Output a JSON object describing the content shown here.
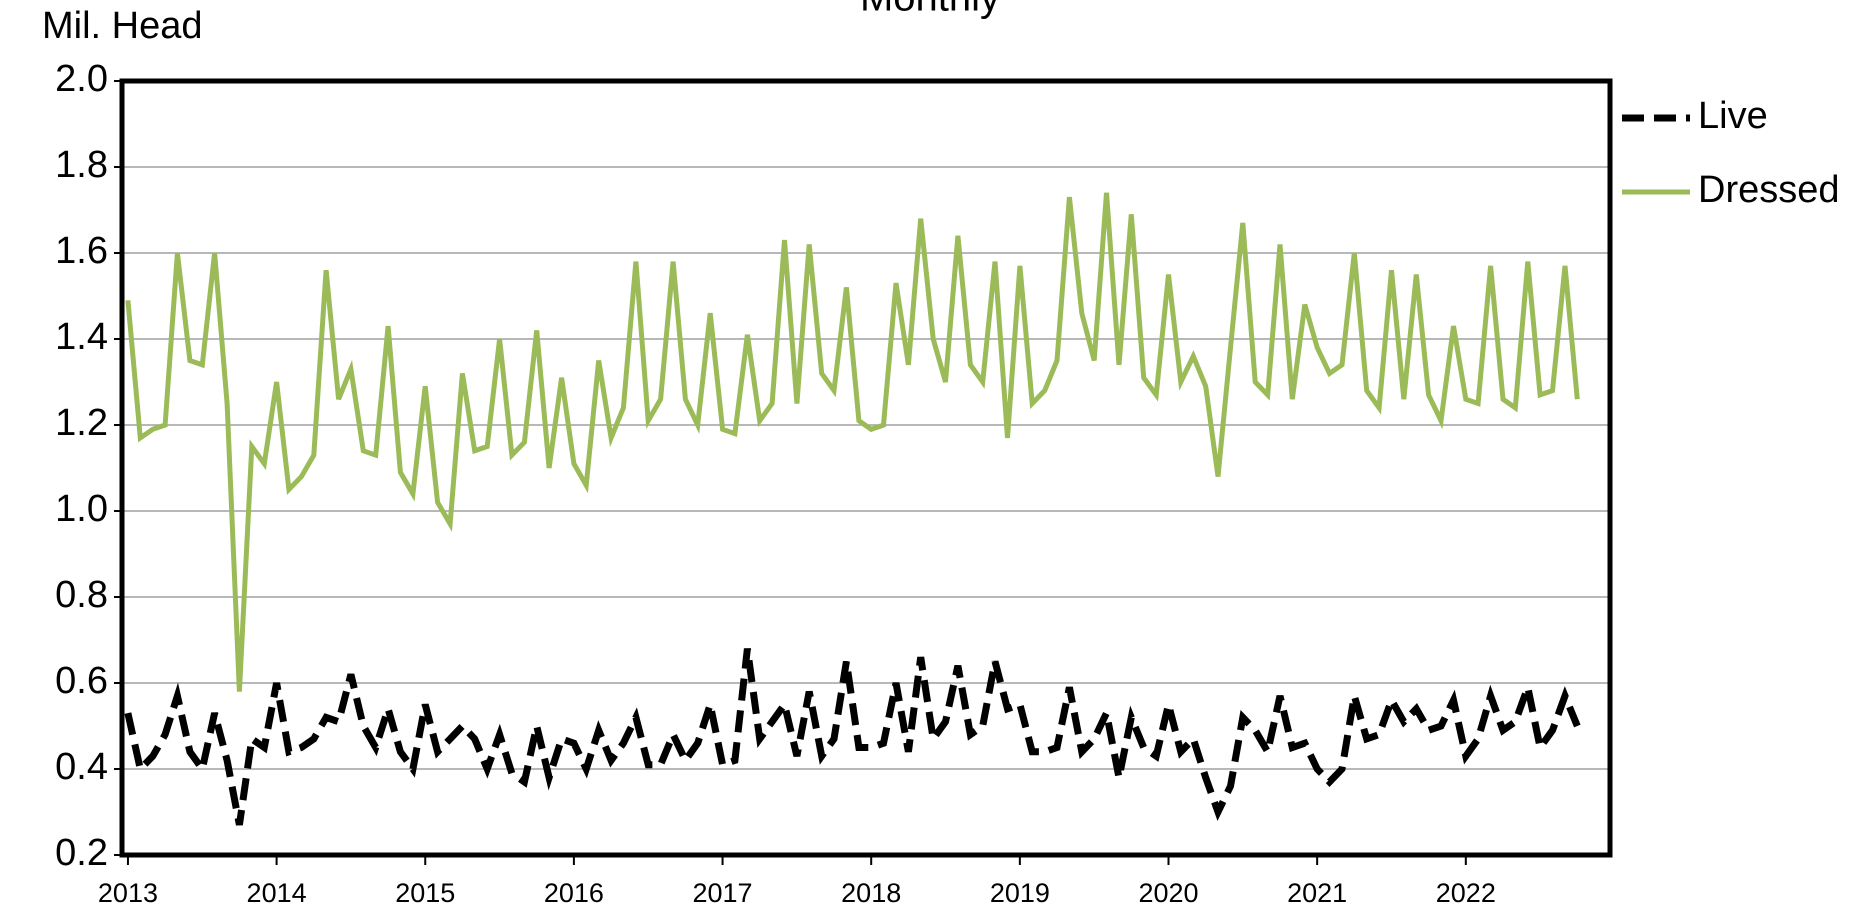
{
  "chart_data": {
    "type": "line",
    "title": "Monthly",
    "ylabel": "Mil. Head",
    "x": [
      2013,
      2013.083,
      2013.167,
      2013.25,
      2013.333,
      2013.417,
      2013.5,
      2013.583,
      2013.667,
      2013.75,
      2013.833,
      2013.917,
      2014,
      2014.083,
      2014.167,
      2014.25,
      2014.333,
      2014.417,
      2014.5,
      2014.583,
      2014.667,
      2014.75,
      2014.833,
      2014.917,
      2015,
      2015.083,
      2015.167,
      2015.25,
      2015.333,
      2015.417,
      2015.5,
      2015.583,
      2015.667,
      2015.75,
      2015.833,
      2015.917,
      2016,
      2016.083,
      2016.167,
      2016.25,
      2016.333,
      2016.417,
      2016.5,
      2016.583,
      2016.667,
      2016.75,
      2016.833,
      2016.917,
      2017,
      2017.083,
      2017.167,
      2017.25,
      2017.333,
      2017.417,
      2017.5,
      2017.583,
      2017.667,
      2017.75,
      2017.833,
      2017.917,
      2018,
      2018.083,
      2018.167,
      2018.25,
      2018.333,
      2018.417,
      2018.5,
      2018.583,
      2018.667,
      2018.75,
      2018.833,
      2018.917,
      2019,
      2019.083,
      2019.167,
      2019.25,
      2019.333,
      2019.417,
      2019.5,
      2019.583,
      2019.667,
      2019.75,
      2019.833,
      2019.917,
      2020,
      2020.083,
      2020.167,
      2020.25,
      2020.333,
      2020.417,
      2020.5,
      2020.583,
      2020.667,
      2020.75,
      2020.833,
      2020.917,
      2021,
      2021.083,
      2021.167,
      2021.25,
      2021.333,
      2021.417,
      2021.5,
      2021.583,
      2021.667,
      2021.75,
      2021.833,
      2021.917,
      2022,
      2022.083,
      2022.167,
      2022.25,
      2022.333,
      2022.417,
      2022.5,
      2022.583,
      2022.667,
      2022.75
    ],
    "series": [
      {
        "name": "Live",
        "color": "#000000",
        "dashed": true,
        "values": [
          0.53,
          0.4,
          0.43,
          0.48,
          0.57,
          0.44,
          0.4,
          0.53,
          0.42,
          0.27,
          0.47,
          0.45,
          0.6,
          0.44,
          0.45,
          0.47,
          0.52,
          0.51,
          0.62,
          0.5,
          0.45,
          0.54,
          0.44,
          0.4,
          0.55,
          0.44,
          0.47,
          0.5,
          0.47,
          0.4,
          0.48,
          0.39,
          0.37,
          0.5,
          0.38,
          0.47,
          0.46,
          0.4,
          0.49,
          0.42,
          0.46,
          0.52,
          0.41,
          0.41,
          0.48,
          0.42,
          0.46,
          0.55,
          0.41,
          0.42,
          0.68,
          0.47,
          0.51,
          0.55,
          0.43,
          0.58,
          0.43,
          0.47,
          0.65,
          0.45,
          0.45,
          0.46,
          0.6,
          0.44,
          0.66,
          0.47,
          0.51,
          0.64,
          0.48,
          0.5,
          0.65,
          0.54,
          0.55,
          0.44,
          0.44,
          0.45,
          0.59,
          0.44,
          0.47,
          0.53,
          0.38,
          0.52,
          0.45,
          0.43,
          0.55,
          0.44,
          0.47,
          0.38,
          0.3,
          0.36,
          0.52,
          0.49,
          0.44,
          0.57,
          0.45,
          0.46,
          0.4,
          0.37,
          0.4,
          0.57,
          0.47,
          0.48,
          0.56,
          0.51,
          0.54,
          0.49,
          0.5,
          0.56,
          0.43,
          0.47,
          0.57,
          0.49,
          0.51,
          0.59,
          0.45,
          0.49,
          0.57,
          0.5
        ]
      },
      {
        "name": "Dressed",
        "color": "#9bbb59",
        "dashed": false,
        "values": [
          1.49,
          1.17,
          1.19,
          1.2,
          1.6,
          1.35,
          1.34,
          1.6,
          1.25,
          0.58,
          1.15,
          1.11,
          1.3,
          1.05,
          1.08,
          1.13,
          1.56,
          1.26,
          1.33,
          1.14,
          1.13,
          1.43,
          1.09,
          1.04,
          1.29,
          1.02,
          0.97,
          1.32,
          1.14,
          1.15,
          1.4,
          1.13,
          1.16,
          1.42,
          1.1,
          1.31,
          1.11,
          1.06,
          1.35,
          1.17,
          1.24,
          1.58,
          1.21,
          1.26,
          1.58,
          1.26,
          1.2,
          1.46,
          1.19,
          1.18,
          1.41,
          1.21,
          1.25,
          1.63,
          1.25,
          1.62,
          1.32,
          1.28,
          1.52,
          1.21,
          1.19,
          1.2,
          1.53,
          1.34,
          1.68,
          1.4,
          1.3,
          1.64,
          1.34,
          1.3,
          1.58,
          1.17,
          1.57,
          1.25,
          1.28,
          1.35,
          1.73,
          1.46,
          1.35,
          1.74,
          1.34,
          1.69,
          1.31,
          1.27,
          1.55,
          1.3,
          1.36,
          1.29,
          1.08,
          1.38,
          1.67,
          1.3,
          1.27,
          1.62,
          1.26,
          1.48,
          1.38,
          1.32,
          1.34,
          1.6,
          1.28,
          1.24,
          1.56,
          1.26,
          1.55,
          1.27,
          1.21,
          1.43,
          1.26,
          1.25,
          1.57,
          1.26,
          1.24,
          1.58,
          1.27,
          1.28,
          1.57,
          1.26
        ]
      }
    ],
    "xlim": [
      2012.96,
      2022.97
    ],
    "xticks": [
      2013,
      2014,
      2015,
      2016,
      2017,
      2018,
      2019,
      2020,
      2021,
      2022
    ],
    "ylim": [
      0.2,
      2.0
    ],
    "yticks": [
      0.2,
      0.4,
      0.6,
      0.8,
      {
        "value": 1,
        "label": "1.0"
      },
      1.2,
      1.4,
      1.6,
      1.8,
      {
        "value": 2,
        "label": "2.0"
      }
    ],
    "grid": true,
    "legend": "right"
  }
}
